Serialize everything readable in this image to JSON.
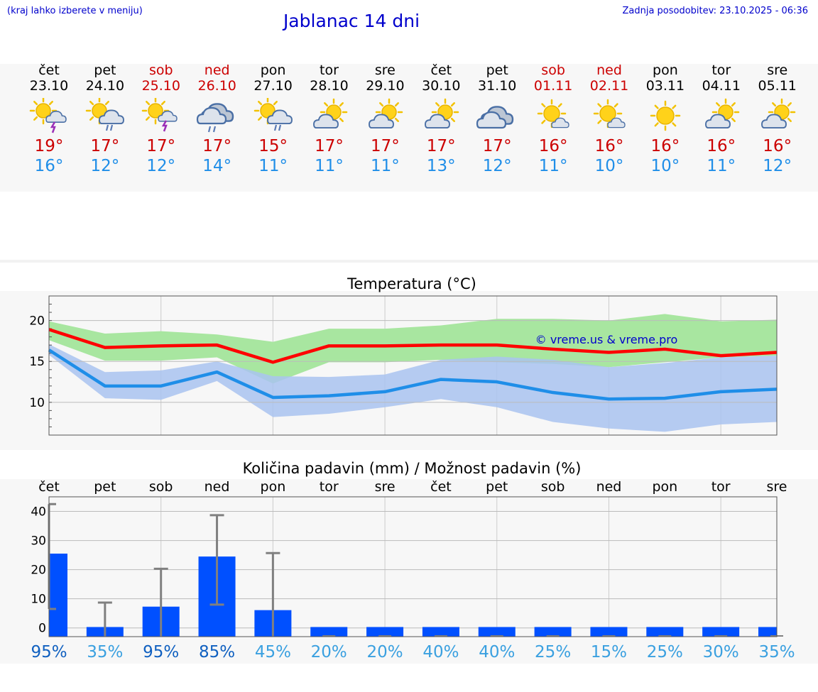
{
  "header": {
    "note": "(kraj lahko izberete v meniju)",
    "title": "Jablanac 14 dni",
    "updated": "Zadnja posodobitev: 23.10.2025 - 06:36"
  },
  "days": [
    {
      "name": "čet",
      "date": "23.10",
      "icon": "sun-cloud-thunder-icon",
      "tmax": "19°",
      "tmin": "16°",
      "weekend": false
    },
    {
      "name": "pet",
      "date": "24.10",
      "icon": "sun-cloud-rain-icon",
      "tmax": "17°",
      "tmin": "12°",
      "weekend": false
    },
    {
      "name": "sob",
      "date": "25.10",
      "icon": "sun-thunder-icon",
      "tmax": "17°",
      "tmin": "12°",
      "weekend": true
    },
    {
      "name": "ned",
      "date": "26.10",
      "icon": "cloud-rain-icon",
      "tmax": "17°",
      "tmin": "14°",
      "weekend": true
    },
    {
      "name": "pon",
      "date": "27.10",
      "icon": "sun-cloud-rain-icon",
      "tmax": "15°",
      "tmin": "11°",
      "weekend": false
    },
    {
      "name": "tor",
      "date": "28.10",
      "icon": "sun-cloud-icon",
      "tmax": "17°",
      "tmin": "11°",
      "weekend": false
    },
    {
      "name": "sre",
      "date": "29.10",
      "icon": "sun-cloud-icon",
      "tmax": "17°",
      "tmin": "11°",
      "weekend": false
    },
    {
      "name": "čet",
      "date": "30.10",
      "icon": "sun-cloud-icon",
      "tmax": "17°",
      "tmin": "13°",
      "weekend": false
    },
    {
      "name": "pet",
      "date": "31.10",
      "icon": "cloud-icon",
      "tmax": "17°",
      "tmin": "12°",
      "weekend": false
    },
    {
      "name": "sob",
      "date": "01.11",
      "icon": "sun-small-cloud-icon",
      "tmax": "16°",
      "tmin": "11°",
      "weekend": true
    },
    {
      "name": "ned",
      "date": "02.11",
      "icon": "sun-small-cloud-icon",
      "tmax": "16°",
      "tmin": "10°",
      "weekend": true
    },
    {
      "name": "pon",
      "date": "03.11",
      "icon": "sun-icon",
      "tmax": "16°",
      "tmin": "10°",
      "weekend": false
    },
    {
      "name": "tor",
      "date": "04.11",
      "icon": "sun-cloud-icon",
      "tmax": "16°",
      "tmin": "11°",
      "weekend": false
    },
    {
      "name": "sre",
      "date": "05.11",
      "icon": "sun-cloud-icon",
      "tmax": "16°",
      "tmin": "12°",
      "weekend": false
    }
  ],
  "colors": {
    "tmax": "#ff0000",
    "tmin": "#1f8ee8",
    "max_band": "#a8e6a0",
    "min_band": "#a9c3f0",
    "overlap": "#7cc4a8",
    "bar": "#0050ff",
    "errbar": "#808080"
  },
  "chart_data": [
    {
      "type": "line",
      "title": "Temperatura (°C)",
      "watermark": "© vreme.us & vreme.pro",
      "ylim": [
        6,
        23
      ],
      "yticks": [
        10,
        15,
        20
      ],
      "x": [
        0,
        1,
        2,
        3,
        4,
        5,
        6,
        7,
        8,
        9,
        10,
        11,
        12,
        13
      ],
      "series": [
        {
          "name": "tmax",
          "values": [
            18.9,
            16.7,
            16.9,
            17.0,
            14.9,
            16.9,
            16.9,
            17.0,
            17.0,
            16.5,
            16.1,
            16.5,
            15.7,
            16.1
          ]
        },
        {
          "name": "tmin",
          "values": [
            16.4,
            12.0,
            12.0,
            13.7,
            10.6,
            10.8,
            11.3,
            12.8,
            12.5,
            11.2,
            10.4,
            10.5,
            11.3,
            11.6
          ]
        },
        {
          "name": "tmax_range_low",
          "values": [
            17.6,
            15.1,
            15.1,
            15.5,
            12.3,
            14.9,
            14.9,
            15.2,
            14.9,
            14.7,
            14.3,
            14.9,
            15.5,
            15.7
          ]
        },
        {
          "name": "tmax_range_high",
          "values": [
            19.9,
            18.4,
            18.7,
            18.3,
            17.4,
            19.0,
            19.0,
            19.4,
            20.2,
            20.2,
            20.0,
            20.8,
            19.9,
            20.1
          ]
        },
        {
          "name": "tmin_range_low",
          "values": [
            15.8,
            10.5,
            10.3,
            12.6,
            8.2,
            8.6,
            9.4,
            10.4,
            9.4,
            7.6,
            6.8,
            6.4,
            7.3,
            7.6
          ]
        },
        {
          "name": "tmin_range_high",
          "values": [
            17.1,
            13.7,
            13.9,
            15.0,
            13.2,
            13.1,
            13.4,
            15.2,
            15.6,
            15.2,
            14.3,
            14.8,
            15.5,
            15.7
          ]
        }
      ]
    },
    {
      "type": "bar",
      "title": "Količina padavin (mm) / Možnost padavin (%)",
      "categories": [
        "čet",
        "pet",
        "sob",
        "ned",
        "pon",
        "tor",
        "sre",
        "čet",
        "pet",
        "sob",
        "ned",
        "pon",
        "tor",
        "sre"
      ],
      "ylim": [
        -3,
        45
      ],
      "yticks": [
        0,
        10,
        20,
        30,
        40
      ],
      "values": [
        25.5,
        0.3,
        7.3,
        24.5,
        6.1,
        0,
        0,
        0,
        0,
        0,
        0,
        0,
        0,
        0
      ],
      "err_low": [
        6.5,
        0,
        0,
        8,
        0,
        0,
        0,
        0,
        0,
        0,
        0,
        0,
        0,
        0
      ],
      "err_high": [
        42.5,
        8.7,
        20.3,
        38.7,
        25.7,
        0,
        0,
        0,
        0,
        0,
        0,
        0,
        0,
        0
      ],
      "probability": [
        "95%",
        "35%",
        "95%",
        "85%",
        "45%",
        "20%",
        "20%",
        "40%",
        "40%",
        "25%",
        "15%",
        "25%",
        "30%",
        "35%"
      ],
      "prob_values": [
        95,
        35,
        95,
        85,
        45,
        20,
        20,
        40,
        40,
        25,
        15,
        25,
        30,
        35
      ]
    }
  ]
}
